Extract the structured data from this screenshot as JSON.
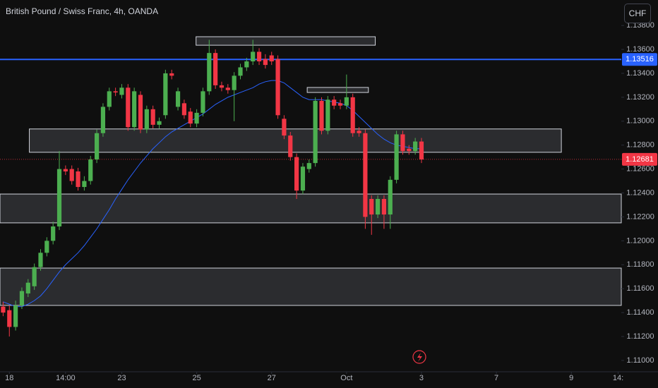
{
  "chart_data": {
    "type": "candlestick",
    "title": "British Pound / Swiss Franc, 4h, OANDA",
    "currency": "CHF",
    "up_color": "#4caf50",
    "down_color": "#f23645",
    "x": [
      -1,
      0,
      1,
      2,
      3,
      4,
      5,
      6,
      7,
      8,
      9,
      10,
      11,
      12,
      13,
      14,
      15,
      16,
      17,
      18,
      19,
      20,
      21,
      22,
      23,
      24,
      25,
      26,
      27,
      28,
      29,
      30,
      31,
      32,
      33,
      34,
      35,
      36,
      37,
      38,
      39,
      40,
      41,
      42,
      43,
      44,
      45,
      46,
      47,
      48,
      49,
      50,
      51,
      52,
      53,
      54,
      55,
      56,
      57,
      58,
      59,
      60,
      61,
      62,
      63,
      64,
      65,
      66
    ],
    "open": [
      1.1145,
      1.1142,
      1.1128,
      1.1146,
      1.1156,
      1.1162,
      1.1178,
      1.119,
      1.12,
      1.1212,
      1.126,
      1.126,
      1.1258,
      1.1245,
      1.125,
      1.1268,
      1.129,
      1.1312,
      1.1325,
      1.1322,
      1.1328,
      1.1295,
      1.1322,
      1.1293,
      1.131,
      1.1297,
      1.1305,
      1.134,
      1.1312,
      1.1315,
      1.1308,
      1.1298,
      1.1307,
      1.1325,
      1.1357,
      1.133,
      1.1328,
      1.1326,
      1.1338,
      1.1345,
      1.135,
      1.1358,
      1.1352,
      1.1355,
      1.1352,
      1.1302,
      1.1288,
      1.127,
      1.1242,
      1.126,
      1.1265,
      1.1317,
      1.1292,
      1.1318,
      1.1315,
      1.1313,
      1.132,
      1.1292,
      1.129,
      1.1235,
      1.1222,
      1.1235,
      1.1222,
      1.1251,
      1.1289,
      1.1277,
      1.1275,
      1.1283
    ],
    "high": [
      1.1149,
      1.1146,
      1.115,
      1.1161,
      1.1168,
      1.1181,
      1.1193,
      1.1203,
      1.1216,
      1.1275,
      1.1263,
      1.1263,
      1.1261,
      1.1254,
      1.1271,
      1.1293,
      1.1315,
      1.1328,
      1.1328,
      1.1331,
      1.1331,
      1.1328,
      1.1325,
      1.1313,
      1.1313,
      1.1303,
      1.1343,
      1.1343,
      1.1328,
      1.1318,
      1.1311,
      1.131,
      1.1328,
      1.1368,
      1.136,
      1.1333,
      1.1331,
      1.1341,
      1.1348,
      1.1353,
      1.1368,
      1.1361,
      1.1356,
      1.1358,
      1.1355,
      1.1305,
      1.1291,
      1.1273,
      1.1265,
      1.1268,
      1.132,
      1.132,
      1.1321,
      1.1321,
      1.1318,
      1.1339,
      1.1323,
      1.1295,
      1.1293,
      1.1238,
      1.1238,
      1.1238,
      1.1254,
      1.1292,
      1.1292,
      1.128,
      1.1286,
      1.1286
    ],
    "low": [
      1.1137,
      1.112,
      1.1125,
      1.1143,
      1.1153,
      1.1159,
      1.1175,
      1.1187,
      1.1197,
      1.1209,
      1.1255,
      1.1247,
      1.1242,
      1.1242,
      1.1247,
      1.1265,
      1.1287,
      1.1309,
      1.1321,
      1.1319,
      1.1292,
      1.1292,
      1.129,
      1.129,
      1.1294,
      1.1294,
      1.1302,
      1.1335,
      1.1309,
      1.1302,
      1.1295,
      1.1295,
      1.1304,
      1.1322,
      1.1327,
      1.1325,
      1.1323,
      1.13,
      1.1335,
      1.1342,
      1.1347,
      1.1347,
      1.1344,
      1.1347,
      1.1302,
      1.1285,
      1.1267,
      1.1235,
      1.1239,
      1.1257,
      1.1262,
      1.1289,
      1.1289,
      1.131,
      1.131,
      1.131,
      1.1287,
      1.1287,
      1.121,
      1.1205,
      1.1219,
      1.121,
      1.121,
      1.1248,
      1.1272,
      1.1272,
      1.1272,
      1.1265
    ],
    "close": [
      1.114,
      1.1128,
      1.1146,
      1.1158,
      1.1165,
      1.1178,
      1.119,
      1.12,
      1.1212,
      1.126,
      1.1258,
      1.125,
      1.1245,
      1.125,
      1.1268,
      1.129,
      1.1312,
      1.1325,
      1.1324,
      1.1328,
      1.1295,
      1.1325,
      1.1293,
      1.131,
      1.1297,
      1.13,
      1.134,
      1.1338,
      1.1325,
      1.1305,
      1.1298,
      1.1307,
      1.1325,
      1.1357,
      1.133,
      1.1328,
      1.1326,
      1.1338,
      1.1345,
      1.135,
      1.1358,
      1.135,
      1.1347,
      1.135,
      1.1305,
      1.1288,
      1.127,
      1.1242,
      1.1262,
      1.1265,
      1.1317,
      1.1292,
      1.1318,
      1.1313,
      1.1313,
      1.132,
      1.129,
      1.129,
      1.122,
      1.1222,
      1.1235,
      1.1222,
      1.1251,
      1.1289,
      1.1275,
      1.1275,
      1.1283,
      1.1268
    ],
    "ma": {
      "color": "#2962ff",
      "values": [
        1.1149,
        1.1147,
        1.1145,
        1.1145,
        1.1147,
        1.115,
        1.1154,
        1.116,
        1.1167,
        1.1174,
        1.118,
        1.1185,
        1.119,
        1.1196,
        1.1203,
        1.121,
        1.1218,
        1.1226,
        1.1235,
        1.1243,
        1.1251,
        1.1258,
        1.1265,
        1.1271,
        1.1277,
        1.1282,
        1.1287,
        1.1291,
        1.1294,
        1.1297,
        1.13,
        1.1303,
        1.1306,
        1.131,
        1.1314,
        1.1317,
        1.132,
        1.1322,
        1.1324,
        1.1326,
        1.1328,
        1.1331,
        1.1333,
        1.1334,
        1.1334,
        1.1332,
        1.1328,
        1.1324,
        1.132,
        1.1318,
        1.1318,
        1.1318,
        1.1317,
        1.1316,
        1.1315,
        1.1313,
        1.1309,
        1.1304,
        1.1299,
        1.1294,
        1.1289,
        1.1285,
        1.1282,
        1.128,
        1.1279,
        1.1278,
        1.1277,
        1.1277
      ]
    },
    "zones": [
      {
        "x": [
          29.9,
          58.6
        ],
        "y": [
          1.13635,
          1.13706
        ]
      },
      {
        "x": [
          47.7,
          57.5
        ],
        "y": [
          1.1324,
          1.13282
        ]
      },
      {
        "x": [
          3.2,
          88.4
        ],
        "y": [
          1.1274,
          1.12935
        ]
      },
      {
        "x": [
          -1.5,
          98
        ],
        "y": [
          1.1215,
          1.12391
        ]
      },
      {
        "x": [
          -1.5,
          98
        ],
        "y": [
          1.1146,
          1.11772
        ]
      }
    ],
    "hline": {
      "value": 1.13516,
      "color": "#2962ff"
    },
    "last_price": 1.12681,
    "xlim": [
      -1.5,
      98
    ],
    "ylim": [
      1.10917,
      1.14013
    ],
    "xticks": [
      {
        "value": 0,
        "label": "18"
      },
      {
        "value": 9,
        "label": "14:00"
      },
      {
        "value": 18,
        "label": "23"
      },
      {
        "value": 30,
        "label": "25"
      },
      {
        "value": 42,
        "label": "27"
      },
      {
        "value": 54,
        "label": "Oct"
      },
      {
        "value": 66,
        "label": "3"
      },
      {
        "value": 78,
        "label": "7"
      },
      {
        "value": 90,
        "label": "9"
      },
      {
        "value": 97.5,
        "label": "14:"
      }
    ],
    "yticks": [
      {
        "value": 1.11,
        "label": "1.11000"
      },
      {
        "value": 1.112,
        "label": "1.11200"
      },
      {
        "value": 1.114,
        "label": "1.11400"
      },
      {
        "value": 1.116,
        "label": "1.11600"
      },
      {
        "value": 1.118,
        "label": "1.11800"
      },
      {
        "value": 1.12,
        "label": "1.12000"
      },
      {
        "value": 1.122,
        "label": "1.12200"
      },
      {
        "value": 1.124,
        "label": "1.12400"
      },
      {
        "value": 1.126,
        "label": "1.12600"
      },
      {
        "value": 1.128,
        "label": "1.12800"
      },
      {
        "value": 1.13,
        "label": "1.13000"
      },
      {
        "value": 1.132,
        "label": "1.13200"
      },
      {
        "value": 1.134,
        "label": "1.13400"
      },
      {
        "value": 1.136,
        "label": "1.13600"
      },
      {
        "value": 1.138,
        "label": "1.13800"
      }
    ]
  }
}
